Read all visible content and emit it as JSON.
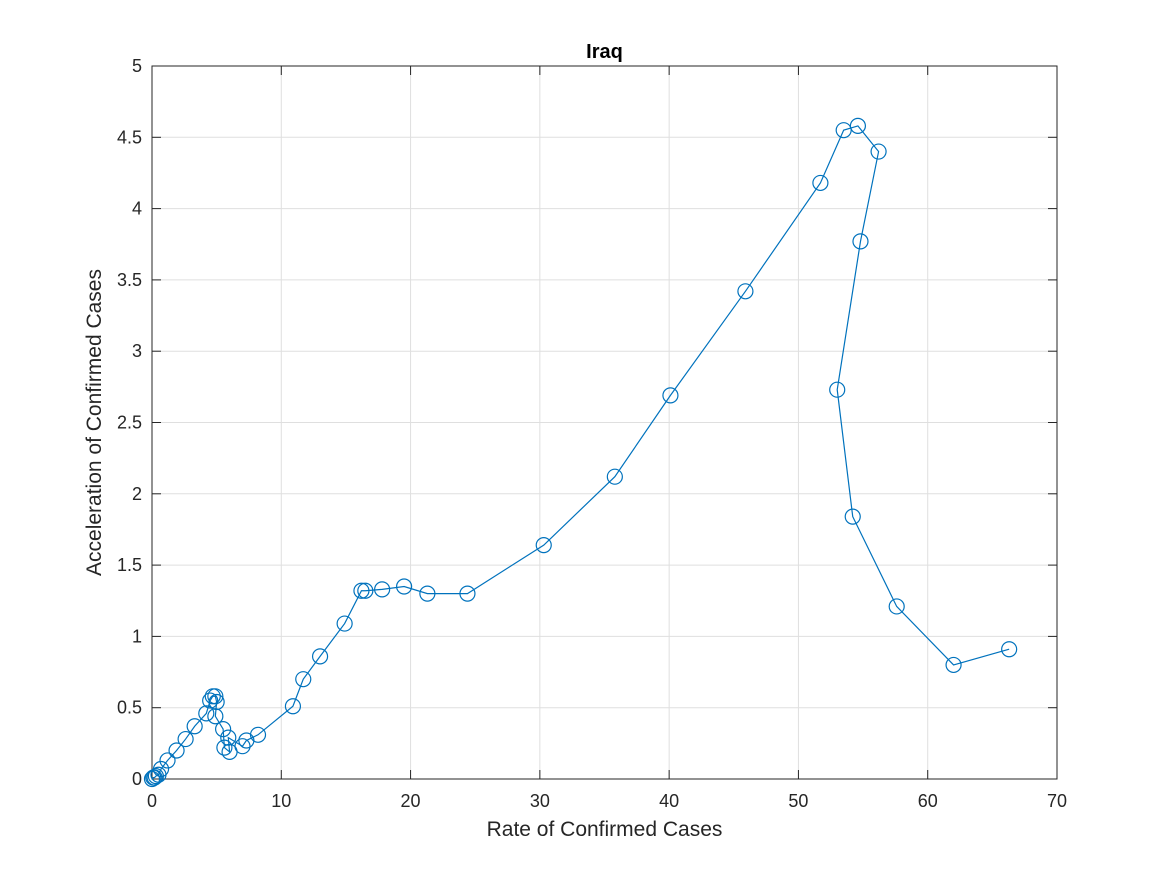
{
  "chart_data": {
    "type": "line",
    "title": "Iraq",
    "xlabel": "Rate of Confirmed Cases",
    "ylabel": "Acceleration of Confirmed Cases",
    "xlim": [
      0,
      70
    ],
    "ylim": [
      0,
      5
    ],
    "xticks": [
      0,
      10,
      20,
      30,
      40,
      50,
      60,
      70
    ],
    "yticks": [
      0,
      0.5,
      1,
      1.5,
      2,
      2.5,
      3,
      3.5,
      4,
      4.5,
      5
    ],
    "xtick_labels": [
      "0",
      "10",
      "20",
      "30",
      "40",
      "50",
      "60",
      "70"
    ],
    "ytick_labels": [
      "0",
      "0.5",
      "1",
      "1.5",
      "2",
      "2.5",
      "3",
      "3.5",
      "4",
      "4.5",
      "5"
    ],
    "grid": true,
    "marker": "circle",
    "line_color": "#0072BD",
    "series": [
      {
        "x": [
          0.0,
          0.1,
          0.2,
          0.3,
          0.5,
          0.7,
          1.2,
          1.9,
          2.6,
          3.3,
          4.2,
          4.5,
          4.7,
          4.9,
          5.0,
          4.9,
          5.5,
          5.6,
          6.0,
          5.9,
          7.0,
          7.3,
          8.2,
          10.9,
          11.7,
          13.0,
          14.9,
          16.2,
          16.5,
          17.8,
          19.5,
          21.3,
          24.4,
          30.3,
          35.8,
          40.1,
          45.9,
          51.7,
          53.5,
          54.6,
          56.2,
          54.8,
          53.0,
          54.2,
          57.6,
          62.0,
          66.3
        ],
        "y": [
          0.0,
          0.01,
          0.01,
          0.02,
          0.03,
          0.07,
          0.13,
          0.2,
          0.28,
          0.37,
          0.46,
          0.55,
          0.58,
          0.58,
          0.54,
          0.44,
          0.35,
          0.22,
          0.19,
          0.29,
          0.23,
          0.27,
          0.31,
          0.51,
          0.7,
          0.86,
          1.09,
          1.32,
          1.32,
          1.33,
          1.35,
          1.3,
          1.3,
          1.64,
          2.12,
          2.69,
          3.42,
          4.18,
          4.55,
          4.58,
          4.4,
          3.77,
          2.73,
          1.84,
          1.21,
          0.8,
          0.91
        ]
      }
    ]
  }
}
